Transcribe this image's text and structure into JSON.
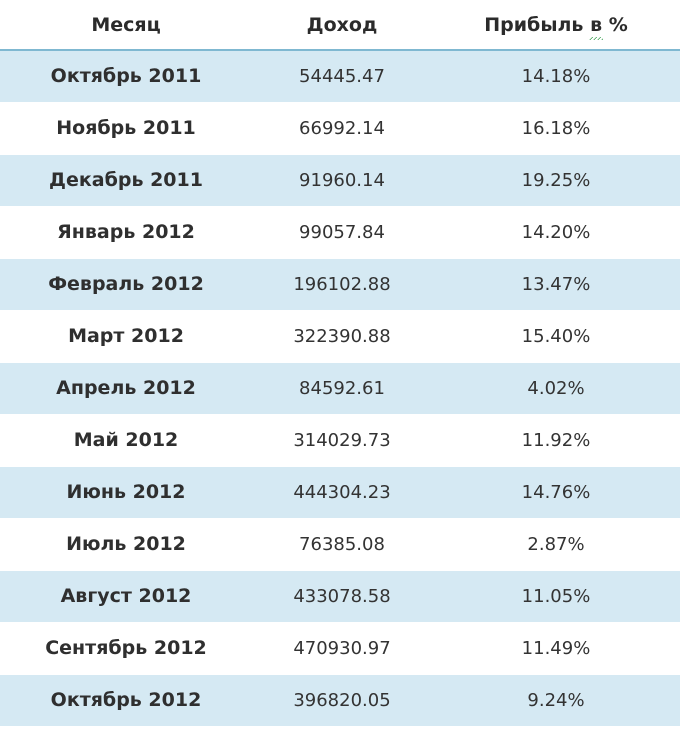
{
  "table": {
    "headers": [
      "Месяц",
      "Доход",
      "Прибыль в %"
    ],
    "header_squiggle_word": "в",
    "rows": [
      {
        "month": "Октябрь 2011",
        "income": "54445.47",
        "profit": "14.18%"
      },
      {
        "month": "Ноябрь 2011",
        "income": "66992.14",
        "profit": "16.18%"
      },
      {
        "month": "Декабрь 2011",
        "income": "91960.14",
        "profit": "19.25%"
      },
      {
        "month": "Январь 2012",
        "income": "99057.84",
        "profit": "14.20%"
      },
      {
        "month": "Февраль 2012",
        "income": "196102.88",
        "profit": "13.47%"
      },
      {
        "month": "Март 2012",
        "income": "322390.88",
        "profit": "15.40%"
      },
      {
        "month": "Апрель 2012",
        "income": "84592.61",
        "profit": "4.02%"
      },
      {
        "month": "Май 2012",
        "income": "314029.73",
        "profit": "11.92%"
      },
      {
        "month": "Июнь 2012",
        "income": "444304.23",
        "profit": "14.76%"
      },
      {
        "month": "Июль 2012",
        "income": "76385.08",
        "profit": "2.87%"
      },
      {
        "month": "Август 2012",
        "income": "433078.58",
        "profit": "11.05%"
      },
      {
        "month": "Сентябрь 2012",
        "income": "470930.97",
        "profit": "11.49%"
      },
      {
        "month": "Октябрь 2012",
        "income": "396820.05",
        "profit": "9.24%"
      }
    ],
    "colors": {
      "row_alt": "#d5e9f3",
      "row_plain": "#ffffff",
      "header_border": "#7fb8d1"
    }
  }
}
